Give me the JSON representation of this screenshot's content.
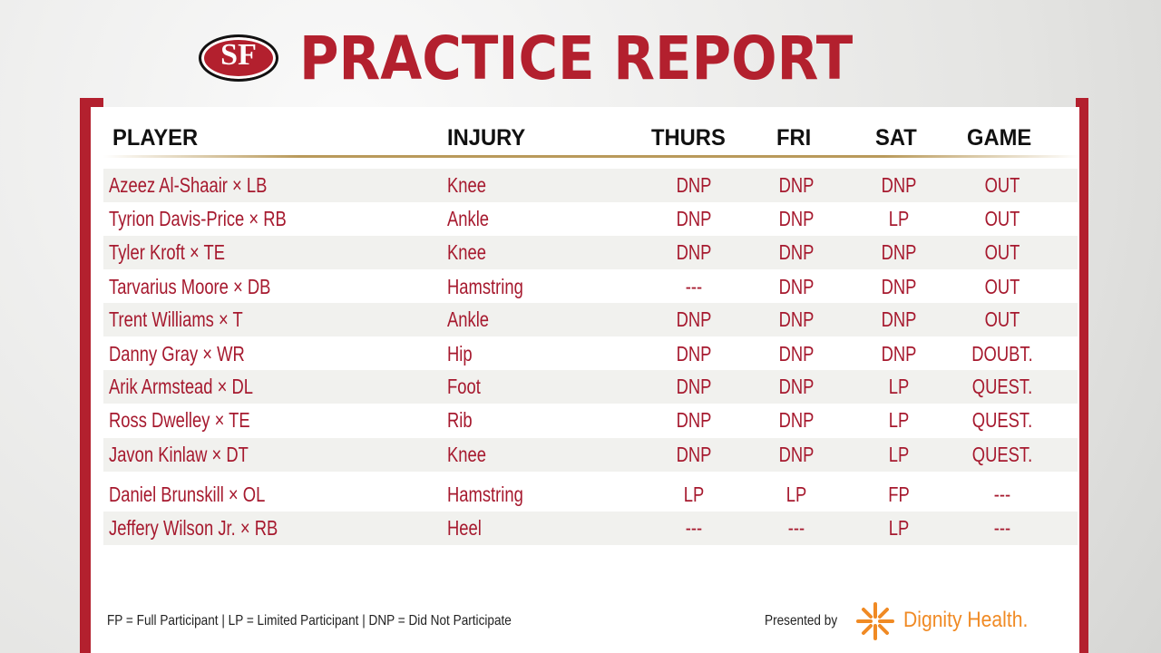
{
  "header": {
    "logo_text": "SF",
    "title": "PRACTICE REPORT"
  },
  "table": {
    "columns": [
      "PLAYER",
      "INJURY",
      "THURS",
      "FRI",
      "SAT",
      "GAME"
    ],
    "rows": [
      [
        "Azeez Al-Shaair × LB",
        "Knee",
        "DNP",
        "DNP",
        "DNP",
        "OUT"
      ],
      [
        "Tyrion Davis-Price × RB",
        "Ankle",
        "DNP",
        "DNP",
        "LP",
        "OUT"
      ],
      [
        "Tyler Kroft × TE",
        "Knee",
        "DNP",
        "DNP",
        "DNP",
        "OUT"
      ],
      [
        "Tarvarius Moore × DB",
        "Hamstring",
        "---",
        "DNP",
        "DNP",
        "OUT"
      ],
      [
        "Trent Williams × T",
        "Ankle",
        "DNP",
        "DNP",
        "DNP",
        "OUT"
      ],
      [
        "Danny Gray × WR",
        "Hip",
        "DNP",
        "DNP",
        "DNP",
        "DOUBT."
      ],
      [
        "Arik Armstead × DL",
        "Foot",
        "DNP",
        "DNP",
        "LP",
        "QUEST."
      ],
      [
        "Ross Dwelley × TE",
        "Rib",
        "DNP",
        "DNP",
        "LP",
        "QUEST."
      ],
      [
        "Javon Kinlaw × DT",
        "Knee",
        "DNP",
        "DNP",
        "LP",
        "QUEST."
      ],
      [
        "Daniel Brunskill × OL",
        "Hamstring",
        "LP",
        "LP",
        "FP",
        "---"
      ],
      [
        "Jeffery Wilson Jr. × RB",
        "Heel",
        "---",
        "---",
        "LP",
        "---"
      ]
    ]
  },
  "legend": "FP = Full Participant | LP = Limited Participant | DNP = Did Not Participate",
  "sponsor": {
    "presented_by": "Presented by",
    "name": "Dignity Health."
  }
}
